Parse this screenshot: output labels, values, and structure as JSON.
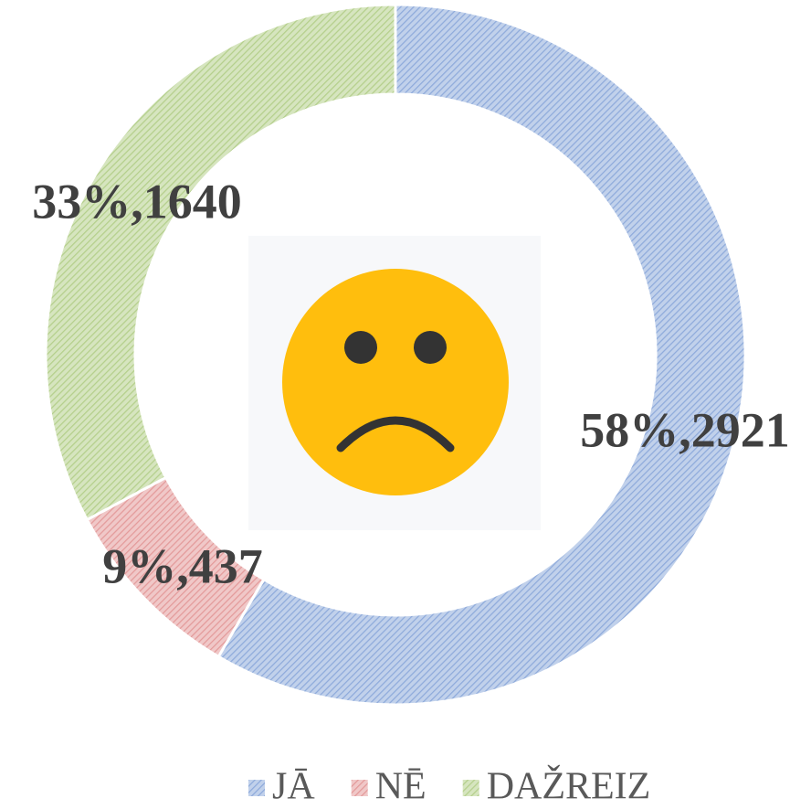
{
  "chart_data": {
    "type": "pie",
    "categories": [
      "JĀ",
      "NĒ",
      "DAŽREIZ"
    ],
    "values": [
      2921,
      437,
      1640
    ],
    "value_labels": [
      "58%,2921",
      "9%,437",
      "33%,1640"
    ],
    "colors": [
      "#8eaadb",
      "#e39a9a",
      "#b4cf8b"
    ],
    "legend": "bottom"
  }
}
